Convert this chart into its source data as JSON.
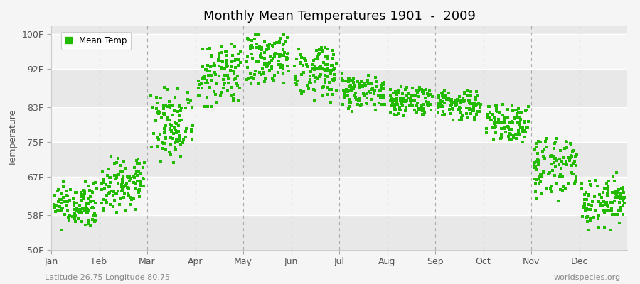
{
  "title": "Monthly Mean Temperatures 1901  -  2009",
  "ylabel": "Temperature",
  "subtitle": "Latitude 26.75 Longitude 80.75",
  "watermark": "worldspecies.org",
  "bg_color": "#f5f5f5",
  "plot_bg_color": "#ffffff",
  "dot_color": "#22bb00",
  "dot_size": 5,
  "legend_label": "Mean Temp",
  "yticks": [
    50,
    58,
    67,
    75,
    83,
    92,
    100
  ],
  "ylim": [
    50,
    102
  ],
  "months": [
    "Jan",
    "Feb",
    "Mar",
    "Apr",
    "May",
    "Jun",
    "Jul",
    "Aug",
    "Sep",
    "Oct",
    "Nov",
    "Dec"
  ],
  "month_means": [
    60.5,
    65.0,
    79.0,
    91.0,
    94.5,
    92.0,
    86.5,
    84.5,
    84.0,
    80.5,
    70.0,
    61.0
  ],
  "month_spreads": [
    3.0,
    3.5,
    5.0,
    4.0,
    3.5,
    3.5,
    2.5,
    2.0,
    2.0,
    3.0,
    4.0,
    4.0
  ],
  "month_mins": [
    54,
    58,
    68,
    83,
    88,
    84,
    82,
    81,
    80,
    75,
    60,
    54
  ],
  "month_maxs": [
    66,
    72,
    88,
    98,
    100,
    97,
    91,
    88,
    87,
    84,
    76,
    68
  ],
  "n_points": 109,
  "band_colors": [
    "#e8e8e8",
    "#f5f5f5"
  ],
  "grid_color": "#ffffff",
  "dashed_color": "#aaaaaa"
}
